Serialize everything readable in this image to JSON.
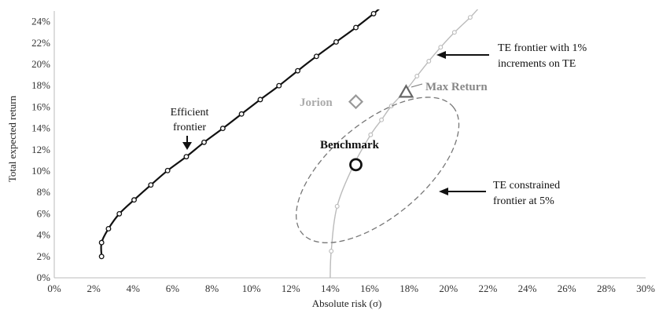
{
  "chart_data": {
    "type": "scatter",
    "xlabel": "Absolute risk (σ)",
    "ylabel": "Total expected return",
    "xlim": [
      0,
      30
    ],
    "ylim": [
      0,
      25
    ],
    "x_ticks": [
      "0%",
      "2%",
      "4%",
      "6%",
      "8%",
      "10%",
      "12%",
      "14%",
      "16%",
      "18%",
      "20%",
      "22%",
      "24%",
      "26%",
      "28%",
      "30%"
    ],
    "y_ticks": [
      "0%",
      "2%",
      "4%",
      "6%",
      "8%",
      "10%",
      "12%",
      "14%",
      "16%",
      "18%",
      "20%",
      "22%",
      "24%"
    ],
    "grid": false,
    "series": [
      {
        "kind": "efficient",
        "color": "#111111",
        "points": [
          [
            2.4,
            2.0
          ],
          [
            2.4,
            3.3
          ],
          [
            2.75,
            4.6
          ],
          [
            3.3,
            6.0
          ],
          [
            4.05,
            7.3
          ],
          [
            4.9,
            8.7
          ],
          [
            5.75,
            10.05
          ],
          [
            6.7,
            11.35
          ],
          [
            7.6,
            12.7
          ],
          [
            8.55,
            14.0
          ],
          [
            9.5,
            15.35
          ],
          [
            10.45,
            16.7
          ],
          [
            11.4,
            18.0
          ],
          [
            12.35,
            19.4
          ],
          [
            13.3,
            20.75
          ],
          [
            14.3,
            22.1
          ],
          [
            15.3,
            23.45
          ],
          [
            16.2,
            24.75
          ],
          [
            16.6,
            25.4
          ]
        ]
      },
      {
        "kind": "te-frontier",
        "color": "#bbbbbb",
        "points": [
          [
            14.0,
            0.0
          ],
          [
            14.05,
            2.5
          ],
          [
            14.35,
            6.7
          ],
          [
            15.2,
            10.6
          ],
          [
            16.05,
            13.4
          ],
          [
            16.6,
            14.8
          ],
          [
            17.1,
            16.1
          ],
          [
            17.85,
            17.6
          ],
          [
            18.4,
            18.9
          ],
          [
            19.0,
            20.3
          ],
          [
            19.6,
            21.6
          ],
          [
            20.3,
            23.0
          ],
          [
            21.1,
            24.4
          ],
          [
            21.5,
            25.2
          ]
        ]
      },
      {
        "kind": "te-constrained",
        "color": "#777777",
        "center": [
          16.4,
          10.1
        ],
        "rx": 5.0,
        "ry": 4.4,
        "rotation_deg": 40
      }
    ],
    "points": [
      {
        "name": "Benchmark",
        "x": 15.3,
        "y": 10.6,
        "marker": "circle",
        "color": "#111111"
      },
      {
        "name": "Jorion",
        "x": 15.3,
        "y": 16.5,
        "marker": "diamond",
        "color": "#999999"
      },
      {
        "name": "Max Return",
        "x": 17.85,
        "y": 17.4,
        "marker": "triangle",
        "color": "#666666"
      }
    ],
    "annotations": {
      "efficient_line1": "Efficient",
      "efficient_line2": "frontier",
      "te_frontier_line1": "TE frontier with 1%",
      "te_frontier_line2": "increments on TE",
      "te_constrained_line1": "TE constrained",
      "te_constrained_line2": "frontier at 5%",
      "benchmark": "Benchmark",
      "jorion": "Jorion",
      "max_return": "Max  Return"
    }
  }
}
